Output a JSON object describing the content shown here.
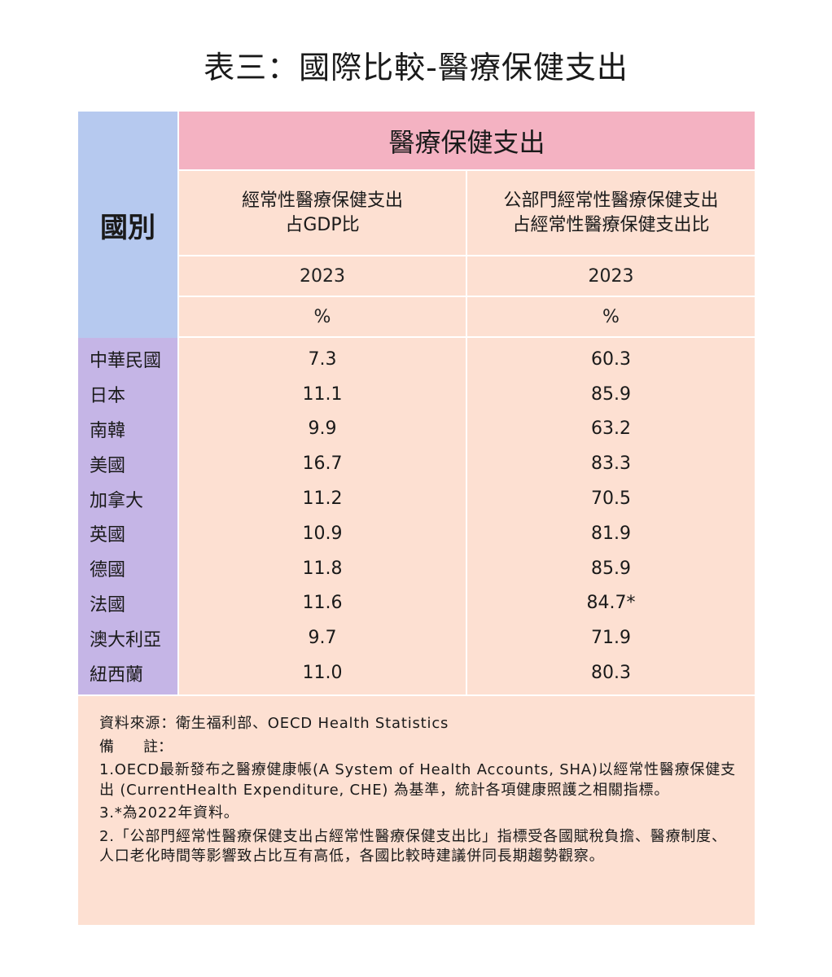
{
  "title": "表三：國際比較-醫療保健支出",
  "table": {
    "country_header": "國別",
    "main_header": "醫療保健支出",
    "columns": [
      {
        "header_line1": "經常性醫療保健支出",
        "header_line2": "占GDP比",
        "year": "2023",
        "unit": "%"
      },
      {
        "header_line1": "公部門經常性醫療保健支出",
        "header_line2": "占經常性醫療保健支出比",
        "year": "2023",
        "unit": "%"
      }
    ],
    "rows": [
      {
        "country": "中華民國",
        "v1": "7.3",
        "v2": "60.3"
      },
      {
        "country": "日本",
        "v1": "11.1",
        "v2": "85.9"
      },
      {
        "country": "南韓",
        "v1": "9.9",
        "v2": "63.2"
      },
      {
        "country": "美國",
        "v1": "16.7",
        "v2": "83.3"
      },
      {
        "country": "加拿大",
        "v1": "11.2",
        "v2": "70.5"
      },
      {
        "country": "英國",
        "v1": "10.9",
        "v2": "81.9"
      },
      {
        "country": "德國",
        "v1": "11.8",
        "v2": "85.9"
      },
      {
        "country": "法國",
        "v1": "11.6",
        "v2": "84.7*"
      },
      {
        "country": "澳大利亞",
        "v1": "9.7",
        "v2": "71.9"
      },
      {
        "country": "紐西蘭",
        "v1": "11.0",
        "v2": "80.3"
      }
    ]
  },
  "notes": {
    "source": "資料來源：衛生福利部、OECD Health Statistics",
    "remark_label": "備　　註：",
    "note1": "1.OECD最新發布之醫療健康帳(A System of Health Accounts, SHA)以經常性醫療保健支出 (CurrentHealth Expenditure, CHE) 為基準，統計各項健康照護之相關指標。",
    "note3": "3.*為2022年資料。",
    "note2": "2.「公部門經常性醫療保健支出占經常性醫療保健支出比」指標受各國賦稅負擔、醫療制度、人口老化時間等影響致占比互有高低，各國比較時建議併同長期趨勢觀察。"
  }
}
